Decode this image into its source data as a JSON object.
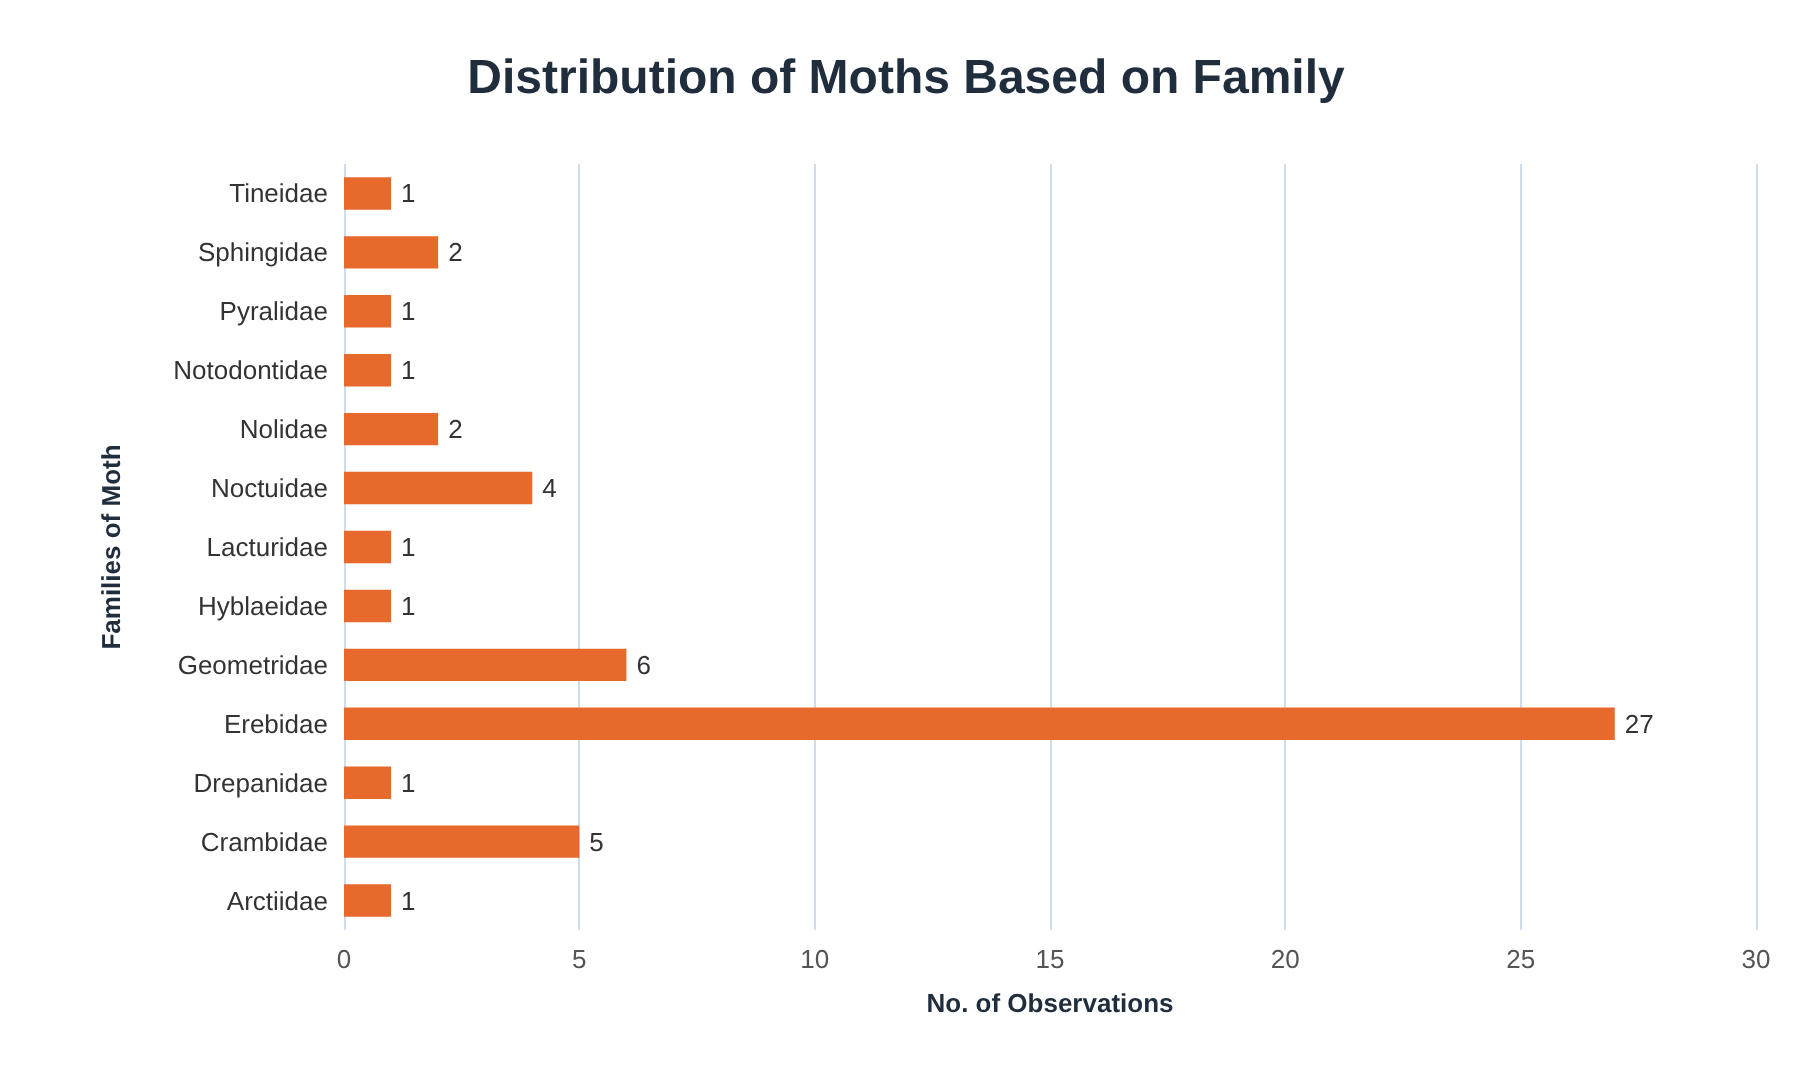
{
  "chart_data": {
    "type": "bar",
    "orientation": "horizontal",
    "title": "Distribution of Moths Based on Family",
    "xlabel": "No. of Observations",
    "ylabel": "Families of Moth",
    "categories": [
      "Tineidae",
      "Sphingidae",
      "Pyralidae",
      "Notodontidae",
      "Nolidae",
      "Noctuidae",
      "Lacturidae",
      "Hyblaeidae",
      "Geometridae",
      "Erebidae",
      "Drepanidae",
      "Crambidae",
      "Arctiidae"
    ],
    "values": [
      1,
      2,
      1,
      1,
      2,
      4,
      1,
      1,
      6,
      27,
      1,
      5,
      1
    ],
    "color": "#e8692c",
    "xlim": [
      0,
      30
    ],
    "xticks": [
      0,
      5,
      10,
      15,
      20,
      25,
      30
    ],
    "grid": "x",
    "data_labels": true
  }
}
